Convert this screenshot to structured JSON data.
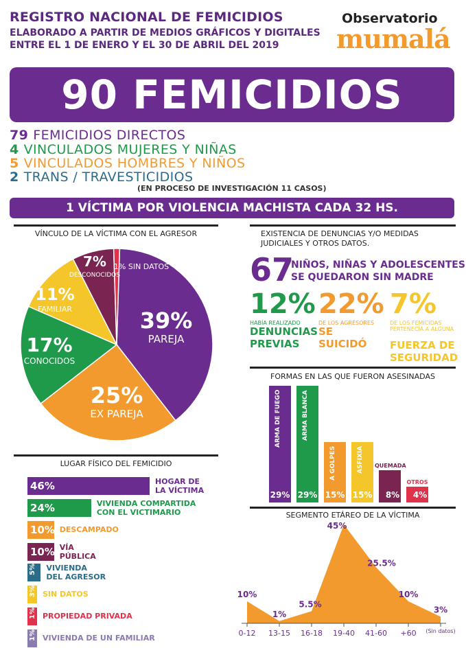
{
  "header": {
    "title": "REGISTRO NACIONAL DE FEMICIDIOS",
    "subtitle_line1": "ELABORADO A PARTIR DE MEDIOS GRÁFICOS Y DIGITALES",
    "subtitle_line2": "ENTRE EL 1 DE ENERO Y EL 30 DE ABRIL DEL 2019",
    "logo_top": "Observatorio",
    "logo_main": "mumalá"
  },
  "banner": {
    "total": "90 FEMICIDIOS"
  },
  "breakdown": [
    {
      "num": "79",
      "text": "FEMICIDIOS DIRECTOS",
      "color": "#6b2c8f"
    },
    {
      "num": "4",
      "text": "VINCULADOS MUJERES Y NIÑAS",
      "color": "#1e9a4a"
    },
    {
      "num": "5",
      "text": "VINCULADOS HOMBRES Y NIÑOS",
      "color": "#f29a2e"
    },
    {
      "num": "2",
      "text": "TRANS / TRAVESTICIDIOS",
      "color": "#2a6c8a"
    }
  ],
  "investigation_note": "(EN PROCESO DE INVESTIGACIÓN 11 CASOS)",
  "frequency_banner": "1 VÍCTIMA POR VIOLENCIA MACHISTA CADA 32 HS.",
  "colors": {
    "purple": "#6b2c8f",
    "green": "#1e9a4a",
    "orange": "#f29a2e",
    "yellow": "#f5c62a",
    "maroon": "#7a2452",
    "red": "#e0324a",
    "blue": "#2a6c8a",
    "lavender": "#8a7bb0"
  },
  "vinculo": {
    "title": "VÍNCULO DE LA VÍCTIMA CON EL AGRESOR"
  },
  "denuncias": {
    "title_line1": "EXISTENCIA DE DENUNCIAS Y/O MEDIDAS",
    "title_line2": "JUDICIALES Y OTROS DATOS.",
    "orphans_num": "67",
    "orphans_text1": "NIÑOS, NIÑAS Y ADOLESCENTES",
    "orphans_text2": "SE QUEDARON SIN MADRE",
    "stats": [
      {
        "pct": "12%",
        "small": "HABÍA REALIZADO",
        "big1": "DENUNCIAS",
        "big2": "PREVIAS",
        "color": "#1e9a4a"
      },
      {
        "pct": "22%",
        "small": "DE LOS AGRESORES",
        "big1": "SE",
        "big2": "SUICIDÓ",
        "color": "#f29a2e"
      },
      {
        "pct": "7%",
        "small": "DE LOS FEMICIDAS PERTENECÍA A ALGUNA",
        "big1": "FUERZA DE",
        "big2": "SEGURIDAD",
        "color": "#f5c62a"
      }
    ]
  },
  "lugar": {
    "title": "LUGAR FÍSICO DEL FEMICIDIO"
  },
  "formas": {
    "title": "FORMAS EN LAS QUE FUERON ASESINADAS"
  },
  "edad": {
    "title": "SEGMENTO ETÁREO DE LA VÍCTIMA"
  },
  "chart_data": [
    {
      "type": "pie",
      "title": "VÍNCULO DE LA VÍCTIMA CON EL AGRESOR",
      "slices": [
        {
          "label": "PAREJA",
          "value": 39,
          "display": "39%",
          "color": "#6b2c8f"
        },
        {
          "label": "EX PAREJA",
          "value": 25,
          "display": "25%",
          "color": "#f29a2e"
        },
        {
          "label": "CONOCIDOS",
          "value": 17,
          "display": "17%",
          "color": "#1e9a4a"
        },
        {
          "label": "FAMILIAR",
          "value": 11,
          "display": "11%",
          "color": "#f5c62a"
        },
        {
          "label": "DESCONOCIDOS",
          "value": 7,
          "display": "7%",
          "color": "#7a2452"
        },
        {
          "label": "SIN DATOS",
          "value": 1,
          "display": "1%",
          "color": "#e0324a"
        }
      ]
    },
    {
      "type": "bar",
      "title": "LUGAR FÍSICO DEL FEMICIDIO",
      "orientation": "horizontal",
      "bars": [
        {
          "label1": "HOGAR DE",
          "label2": "LA VÍCTIMA",
          "value": 46,
          "display": "46%",
          "color": "#6b2c8f"
        },
        {
          "label1": "VIVIENDA COMPARTIDA",
          "label2": "CON EL VICTIMARIO",
          "value": 24,
          "display": "24%",
          "color": "#1e9a4a"
        },
        {
          "label1": "DESCAMPADO",
          "label2": "",
          "value": 10,
          "display": "10%",
          "color": "#f29a2e"
        },
        {
          "label1": "VÍA",
          "label2": "PÚBLICA",
          "value": 10,
          "display": "10%",
          "color": "#7a2452"
        },
        {
          "label1": "VIVIENDA",
          "label2": "DEL AGRESOR",
          "value": 5,
          "display": "5%",
          "color": "#2a6c8a"
        },
        {
          "label1": "SIN DATOS",
          "label2": "",
          "value": 3,
          "display": "3%",
          "color": "#f5c62a"
        },
        {
          "label1": "PROPIEDAD PRIVADA",
          "label2": "",
          "value": 1,
          "display": "1%",
          "color": "#e0324a"
        },
        {
          "label1": "VIVIENDA DE UN FAMILIAR",
          "label2": "",
          "value": 1,
          "display": "1%",
          "color": "#8a7bb0"
        }
      ]
    },
    {
      "type": "bar",
      "title": "FORMAS EN LAS QUE FUERON ASESINADAS",
      "orientation": "vertical",
      "bars": [
        {
          "label": "ARMA DE FUEGO",
          "value": 29,
          "display": "29%",
          "color": "#6b2c8f"
        },
        {
          "label": "ARMA BLANCA",
          "value": 29,
          "display": "29%",
          "color": "#1e9a4a"
        },
        {
          "label": "A GOLPES",
          "value": 15,
          "display": "15%",
          "color": "#f29a2e"
        },
        {
          "label": "ASFIXIA",
          "value": 15,
          "display": "15%",
          "color": "#f5c62a"
        },
        {
          "label": "QUEMADA",
          "value": 8,
          "display": "8%",
          "color": "#7a2452"
        },
        {
          "label": "OTROS",
          "value": 4,
          "display": "4%",
          "color": "#e0324a"
        }
      ]
    },
    {
      "type": "area",
      "title": "SEGMENTO ETÁREO DE LA VÍCTIMA",
      "categories": [
        "0-12",
        "13-15",
        "16-18",
        "19-40",
        "41-60",
        "+60",
        "(Sin datos)"
      ],
      "values": [
        10,
        1,
        5.5,
        45,
        25.5,
        10,
        3
      ],
      "labels": [
        "10%",
        "1%",
        "5.5%",
        "45%",
        "25.5%",
        "10%",
        "3%"
      ],
      "color": "#f29a2e"
    }
  ]
}
